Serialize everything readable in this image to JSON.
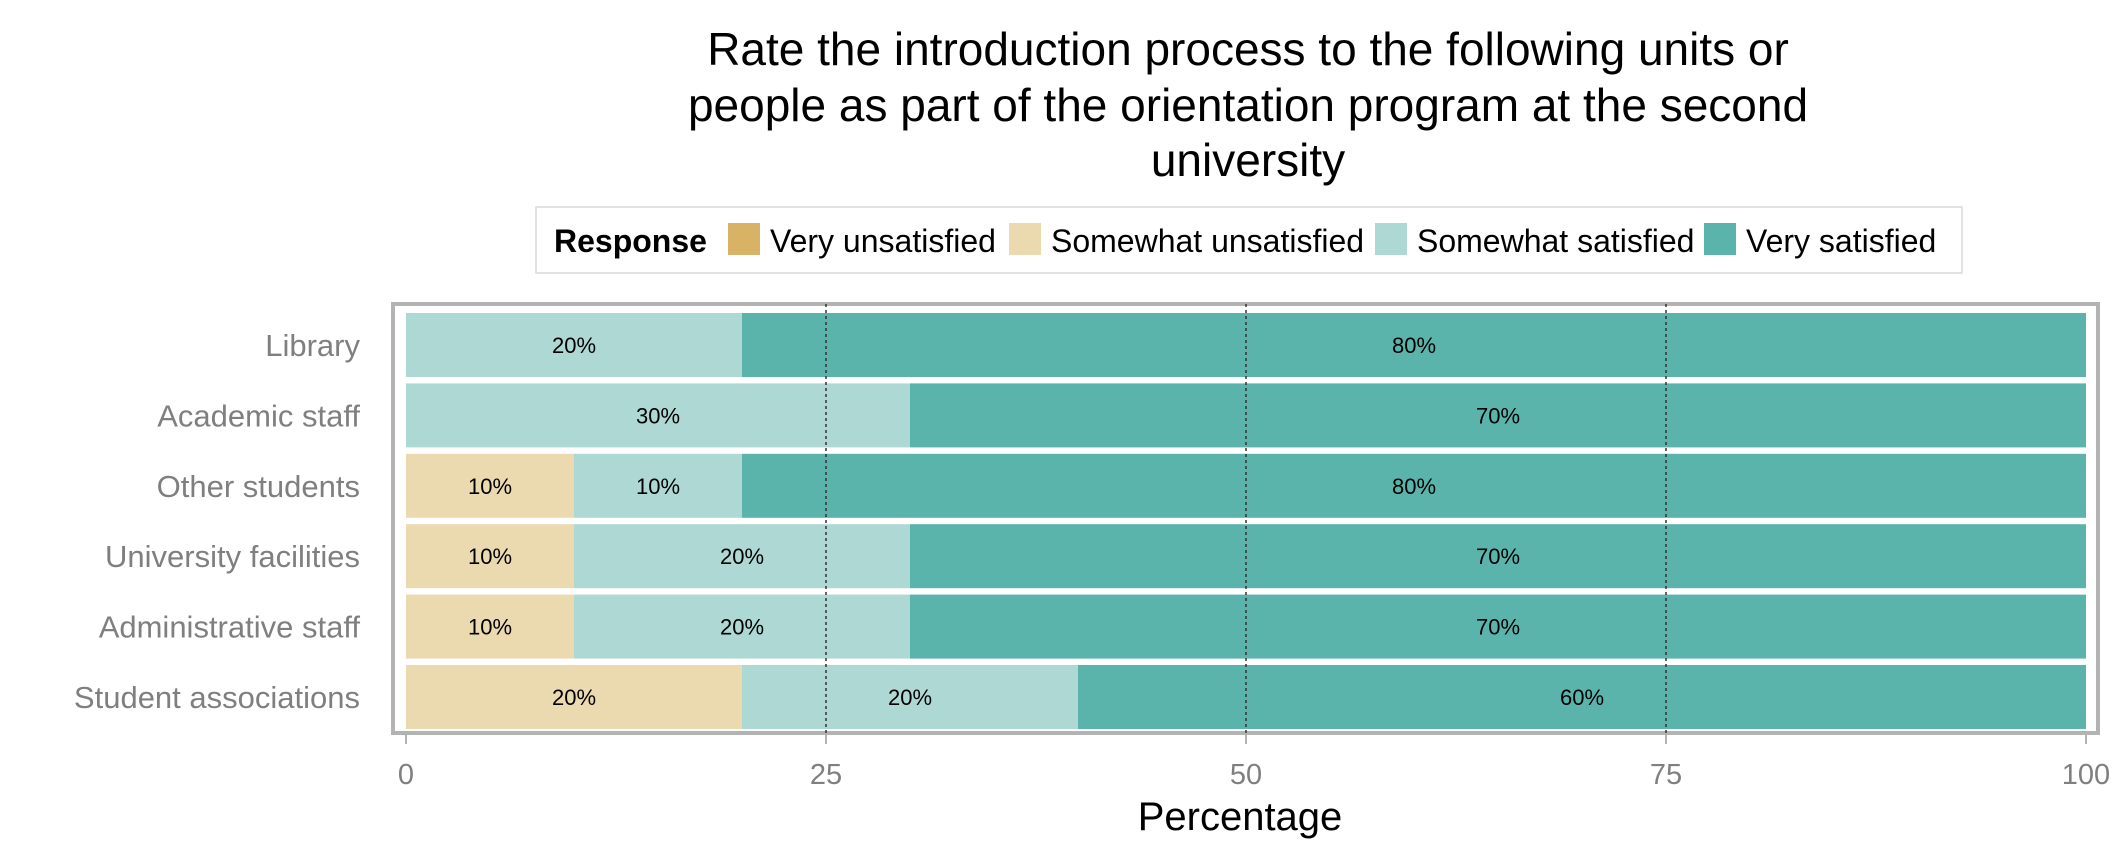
{
  "chart_data": {
    "type": "bar",
    "orientation": "horizontal",
    "stacked": true,
    "title_lines": [
      "Rate the introduction process to the following units or",
      "people as part of the orientation program at the second",
      "university"
    ],
    "legend_title": "Response",
    "legend_position": "top",
    "categories": [
      "Library",
      "Academic staff",
      "Other students",
      "University facilities",
      "Administrative staff",
      "Student associations"
    ],
    "series": [
      {
        "name": "Very unsatisfied",
        "color": "#d8b365",
        "values": [
          0,
          0,
          0,
          0,
          0,
          0
        ]
      },
      {
        "name": "Somewhat unsatisfied",
        "color": "#ebd9b0",
        "values": [
          0,
          0,
          10,
          10,
          10,
          20
        ]
      },
      {
        "name": "Somewhat satisfied",
        "color": "#aed8d3",
        "values": [
          20,
          30,
          10,
          20,
          20,
          20
        ]
      },
      {
        "name": "Very satisfied",
        "color": "#5ab4ac",
        "values": [
          80,
          70,
          80,
          70,
          70,
          60
        ]
      }
    ],
    "xlabel": "Percentage",
    "ylabel": "",
    "xlim": [
      0,
      100
    ],
    "xticks": [
      "0",
      "25",
      "50",
      "75",
      "100"
    ],
    "value_suffix": "%",
    "reference_lines": [
      25,
      50,
      75
    ]
  }
}
